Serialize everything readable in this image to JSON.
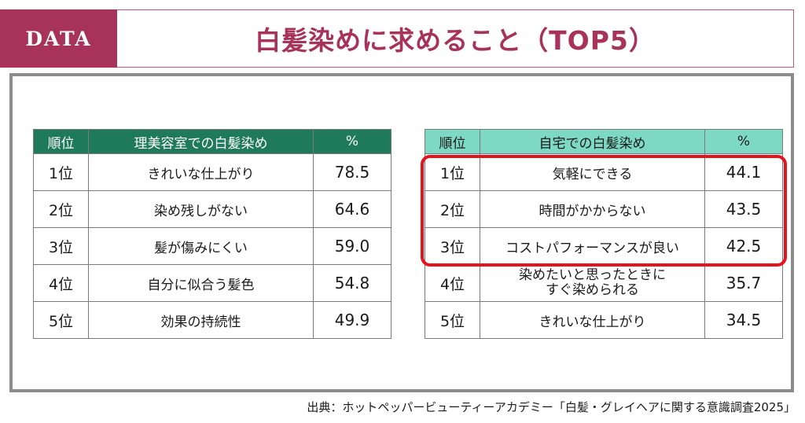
{
  "header": {
    "tag": "DATA",
    "title": "白髪染めに求めること（TOP5）"
  },
  "left_table": {
    "headers": [
      "順位",
      "理美容室での白髪染め",
      "%"
    ],
    "rows": [
      {
        "rank": "1位",
        "item": "きれいな仕上がり",
        "value": "78.5"
      },
      {
        "rank": "2位",
        "item": "染め残しがない",
        "value": "64.6"
      },
      {
        "rank": "3位",
        "item": "髪が傷みにくい",
        "value": "59.0"
      },
      {
        "rank": "4位",
        "item": "自分に似合う髪色",
        "value": "54.8"
      },
      {
        "rank": "5位",
        "item": "効果の持続性",
        "value": "49.9"
      }
    ]
  },
  "right_table": {
    "headers": [
      "順位",
      "自宅での白髪染め",
      "%"
    ],
    "rows": [
      {
        "rank": "1位",
        "item": "気軽にできる",
        "value": "44.1"
      },
      {
        "rank": "2位",
        "item": "時間がかからない",
        "value": "43.5"
      },
      {
        "rank": "3位",
        "item": "コストパフォーマンスが良い",
        "value": "42.5"
      },
      {
        "rank": "4位",
        "item_line1": "染めたいと思ったときに",
        "item_line2": "すぐ染められる",
        "value": "35.7"
      },
      {
        "rank": "5位",
        "item": "きれいな仕上がり",
        "value": "34.5"
      }
    ]
  },
  "source": "出典：ホットペッパービューティーアカデミー「白髪・グレイヘアに関する意識調査2025」",
  "colors": {
    "accent": "#a7335a",
    "left_header": "#1f7a5b",
    "right_header": "#7ed9c4",
    "highlight": "#e4141c"
  }
}
